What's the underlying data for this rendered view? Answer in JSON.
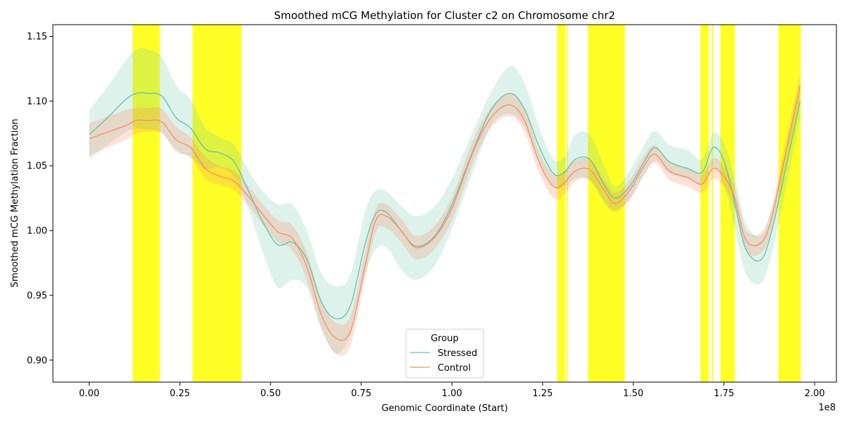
{
  "chart_data": {
    "type": "line",
    "title": "Smoothed mCG Methylation for Cluster c2 on Chromosome chr2",
    "xlabel": "Genomic Coordinate (Start)",
    "ylabel": "Smoothed mCG Methylation Fraction",
    "x_offset_label": "1e8",
    "x_scale_factor": 100000000,
    "xlim": [
      -10000000,
      206000000
    ],
    "ylim": [
      0.883,
      1.159
    ],
    "x_ticks": [
      0,
      25000000,
      50000000,
      75000000,
      100000000,
      125000000,
      150000000,
      175000000,
      200000000
    ],
    "x_tick_labels": [
      "0.00",
      "0.25",
      "0.50",
      "0.75",
      "1.00",
      "1.25",
      "1.50",
      "1.75",
      "2.00"
    ],
    "y_ticks": [
      0.9,
      0.95,
      1.0,
      1.05,
      1.1,
      1.15
    ],
    "y_tick_labels": [
      "0.90",
      "0.95",
      "1.00",
      "1.05",
      "1.10",
      "1.15"
    ],
    "grid": false,
    "legend": {
      "title": "Group",
      "placement": "bottom-center"
    },
    "highlight_color": "#ffff00",
    "highlight_regions": [
      [
        12000000,
        19500000
      ],
      [
        28500000,
        42000000
      ],
      [
        129000000,
        131300000
      ],
      [
        131700000,
        132000000
      ],
      [
        137500000,
        147700000
      ],
      [
        168500000,
        170800000
      ],
      [
        171600000,
        172000000
      ],
      [
        174000000,
        178000000
      ],
      [
        190000000,
        196200000
      ]
    ],
    "series": [
      {
        "name": "Stressed",
        "color": "#66c2a5",
        "x": [
          0,
          5000000,
          10000000,
          13000000,
          16000000,
          20000000,
          24000000,
          28000000,
          32000000,
          36000000,
          40000000,
          44000000,
          48000000,
          52000000,
          56000000,
          60000000,
          64000000,
          68000000,
          72000000,
          76000000,
          79000000,
          82000000,
          86000000,
          90000000,
          95000000,
          100000000,
          106000000,
          111000000,
          116000000,
          120000000,
          124000000,
          128000000,
          131000000,
          134000000,
          138000000,
          142000000,
          145000000,
          149000000,
          153000000,
          156000000,
          160000000,
          165000000,
          169000000,
          172000000,
          175000000,
          178000000,
          181000000,
          185000000,
          188000000,
          192000000,
          196000000
        ],
        "values": [
          1.074,
          1.087,
          1.101,
          1.106,
          1.106,
          1.104,
          1.087,
          1.079,
          1.063,
          1.06,
          1.053,
          1.03,
          1.006,
          0.989,
          0.991,
          0.978,
          0.945,
          0.932,
          0.942,
          0.989,
          1.013,
          1.014,
          1.0,
          0.988,
          0.995,
          1.02,
          1.063,
          1.094,
          1.106,
          1.094,
          1.065,
          1.044,
          1.045,
          1.055,
          1.055,
          1.035,
          1.025,
          1.034,
          1.053,
          1.064,
          1.053,
          1.048,
          1.045,
          1.064,
          1.054,
          1.021,
          0.986,
          0.977,
          0.998,
          1.048,
          1.1
        ],
        "lower": [
          1.055,
          1.066,
          1.076,
          1.079,
          1.078,
          1.076,
          1.062,
          1.057,
          1.047,
          1.049,
          1.041,
          1.016,
          0.982,
          0.956,
          0.962,
          0.956,
          0.924,
          0.905,
          0.92,
          0.966,
          0.985,
          0.987,
          0.97,
          0.962,
          0.972,
          1.001,
          1.047,
          1.082,
          1.09,
          1.08,
          1.053,
          1.034,
          1.034,
          1.04,
          1.039,
          1.021,
          1.016,
          1.024,
          1.043,
          1.054,
          1.044,
          1.04,
          1.035,
          1.049,
          1.035,
          1.001,
          0.967,
          0.959,
          0.98,
          1.031,
          1.087
        ],
        "upper": [
          1.093,
          1.111,
          1.131,
          1.14,
          1.14,
          1.134,
          1.112,
          1.101,
          1.08,
          1.072,
          1.066,
          1.046,
          1.03,
          1.02,
          1.02,
          1.0,
          0.967,
          0.957,
          0.966,
          1.014,
          1.031,
          1.03,
          1.019,
          1.011,
          1.018,
          1.04,
          1.078,
          1.108,
          1.127,
          1.114,
          1.08,
          1.055,
          1.057,
          1.074,
          1.074,
          1.05,
          1.034,
          1.046,
          1.066,
          1.077,
          1.066,
          1.062,
          1.055,
          1.075,
          1.068,
          1.04,
          1.006,
          0.996,
          1.015,
          1.061,
          1.113
        ]
      },
      {
        "name": "Control",
        "color": "#fc8d62",
        "x": [
          0,
          5000000,
          10000000,
          13000000,
          16000000,
          20000000,
          24000000,
          28000000,
          32000000,
          36000000,
          40000000,
          44000000,
          48000000,
          52000000,
          56000000,
          60000000,
          64000000,
          68000000,
          72000000,
          76000000,
          79000000,
          82000000,
          86000000,
          90000000,
          95000000,
          100000000,
          106000000,
          111000000,
          116000000,
          120000000,
          124000000,
          128000000,
          131000000,
          134000000,
          138000000,
          142000000,
          145000000,
          149000000,
          153000000,
          156000000,
          160000000,
          165000000,
          169000000,
          172000000,
          175000000,
          178000000,
          181000000,
          185000000,
          188000000,
          192000000,
          196000000
        ],
        "values": [
          1.071,
          1.076,
          1.081,
          1.085,
          1.085,
          1.084,
          1.07,
          1.064,
          1.048,
          1.042,
          1.038,
          1.026,
          1.012,
          0.999,
          0.994,
          0.972,
          0.935,
          0.917,
          0.922,
          0.972,
          1.008,
          1.011,
          1.0,
          0.987,
          0.994,
          1.017,
          1.062,
          1.088,
          1.097,
          1.085,
          1.053,
          1.034,
          1.037,
          1.046,
          1.047,
          1.031,
          1.021,
          1.031,
          1.05,
          1.059,
          1.046,
          1.041,
          1.036,
          1.048,
          1.042,
          1.025,
          0.993,
          0.99,
          1.008,
          1.06,
          1.112
        ],
        "lower": [
          1.058,
          1.064,
          1.07,
          1.075,
          1.076,
          1.075,
          1.061,
          1.056,
          1.04,
          1.035,
          1.031,
          1.019,
          1.004,
          0.991,
          0.985,
          0.962,
          0.925,
          0.905,
          0.911,
          0.962,
          0.999,
          1.002,
          0.991,
          0.978,
          0.985,
          1.008,
          1.053,
          1.08,
          1.088,
          1.076,
          1.045,
          1.025,
          1.028,
          1.038,
          1.039,
          1.023,
          1.014,
          1.024,
          1.043,
          1.052,
          1.039,
          1.034,
          1.029,
          1.04,
          1.034,
          1.016,
          0.985,
          0.982,
          1.0,
          1.051,
          1.102
        ],
        "upper": [
          1.083,
          1.088,
          1.093,
          1.095,
          1.095,
          1.094,
          1.08,
          1.072,
          1.057,
          1.05,
          1.046,
          1.034,
          1.02,
          1.008,
          1.004,
          0.983,
          0.946,
          0.929,
          0.934,
          0.982,
          1.017,
          1.02,
          1.009,
          0.996,
          1.003,
          1.026,
          1.071,
          1.096,
          1.106,
          1.094,
          1.061,
          1.043,
          1.046,
          1.054,
          1.055,
          1.039,
          1.029,
          1.039,
          1.058,
          1.066,
          1.053,
          1.048,
          1.043,
          1.056,
          1.05,
          1.033,
          1.001,
          0.998,
          1.016,
          1.069,
          1.122
        ]
      }
    ]
  }
}
